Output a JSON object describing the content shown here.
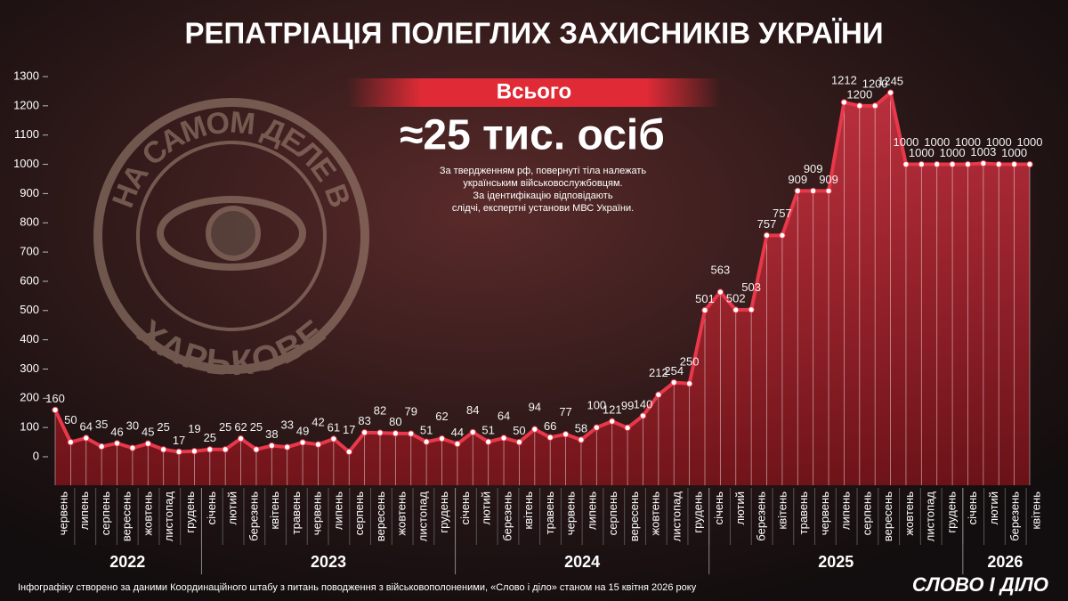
{
  "chart_data": {
    "type": "line",
    "title": "РЕПАТРІАЦІЯ ПОЛЕГЛИХ ЗАХИСНИКІВ УКРАЇНИ",
    "total_label": "Всього",
    "total_value": "≈25 тис. осіб",
    "note": [
      "За твердженням рф, повернуті тіла належать",
      "українським військовослужбовцям.",
      "За ідентифікацію відповідають",
      "слідчі, експертні установи МВС України."
    ],
    "watermark": {
      "top": "НА САМОМ ДЕЛЕ В",
      "bottom": "ХАРЬКОВЕ"
    },
    "footer": "Інфографіку створено за даними Координаційного штабу з питань поводження з військовополоненими, «Слово і діло» станом на 15 квітня 2026 року",
    "logo": "СЛОВО І ДІЛО",
    "years": [
      {
        "year": "2022",
        "months": [
          "червень",
          "липень",
          "серпень",
          "вересень",
          "жовтень",
          "листопад",
          "грудень"
        ]
      },
      {
        "year": "2023",
        "months": [
          "січень",
          "лютий",
          "березень",
          "квітень",
          "травень",
          "червень",
          "липень",
          "серпень",
          "вересень",
          "жовтень",
          "листопад",
          "грудень"
        ]
      },
      {
        "year": "2024",
        "months": [
          "січень",
          "лютий",
          "березень",
          "квітень",
          "травень",
          "червень",
          "липень",
          "серпень",
          "вересень",
          "жовтень",
          "листопад",
          "грудень"
        ]
      },
      {
        "year": "2025",
        "months": [
          "січень",
          "лютий",
          "березень",
          "квітень",
          "травень",
          "червень",
          "липень",
          "серпень",
          "вересень",
          "жовтень",
          "листопад",
          "грудень"
        ]
      },
      {
        "year": "2026",
        "months": [
          "січень",
          "лютий",
          "березень",
          "квітень"
        ]
      }
    ],
    "series": [
      {
        "color": "#e8384a",
        "values": [
          160,
          50,
          64,
          35,
          46,
          30,
          45,
          25,
          17,
          19,
          25,
          25,
          62,
          25,
          38,
          33,
          49,
          42,
          61,
          17,
          83,
          82,
          80,
          79,
          51,
          62,
          44,
          84,
          51,
          64,
          50,
          94,
          66,
          77,
          58,
          100,
          121,
          99,
          140,
          212,
          254,
          250,
          501,
          563,
          502,
          503,
          757,
          757,
          909,
          909,
          909,
          1212,
          1200,
          1200,
          1245,
          1000,
          1000,
          1000,
          1000,
          1000,
          1003,
          1000,
          1000,
          1000
        ]
      }
    ],
    "ylim": [
      0,
      1300
    ],
    "yticks": [
      0,
      100,
      200,
      300,
      400,
      500,
      600,
      700,
      800,
      900,
      1000,
      1100,
      1200,
      1300
    ]
  }
}
